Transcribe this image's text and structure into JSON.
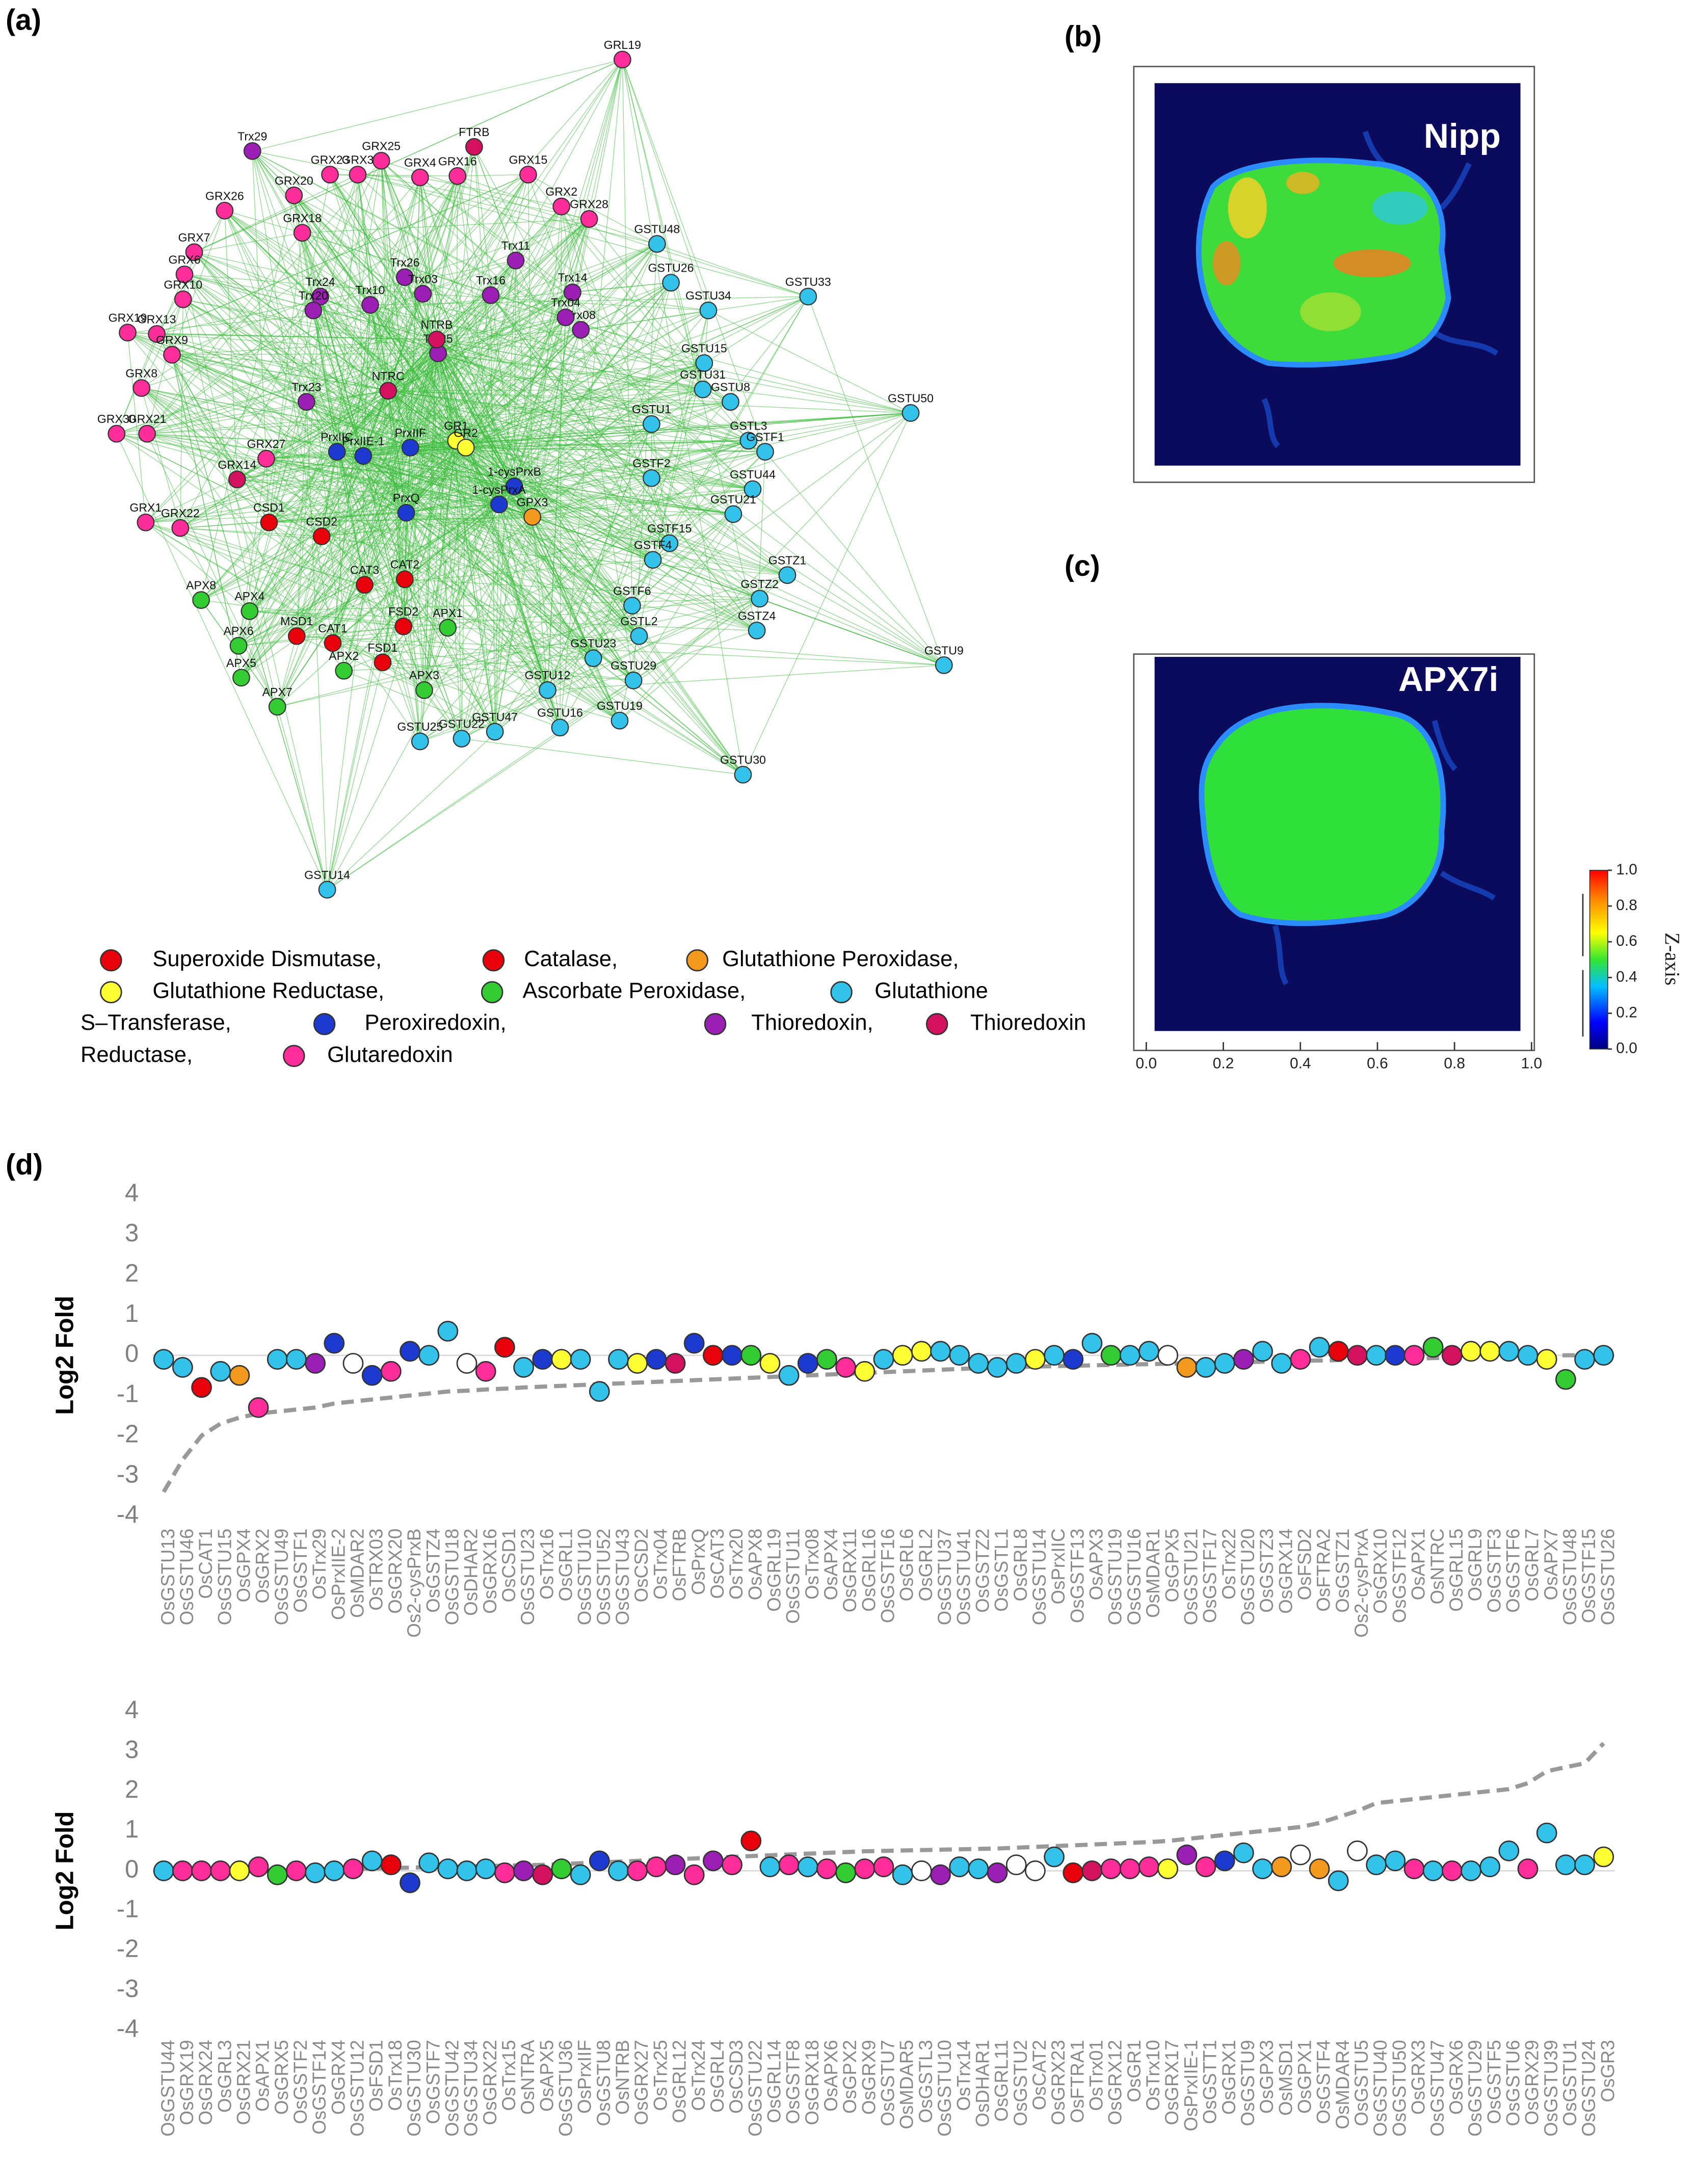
{
  "network": {
    "panel_label": "(a)",
    "nodes": [
      {
        "label": "GRL19",
        "color": "#ff2d9a"
      },
      {
        "label": "FTRB",
        "color": "#d3115e"
      },
      {
        "label": "GRX15",
        "color": "#ff2d9a"
      },
      {
        "label": "GRX25",
        "color": "#ff2d9a"
      },
      {
        "label": "GRX4",
        "color": "#ff2d9a"
      },
      {
        "label": "GRX16",
        "color": "#ff2d9a"
      },
      {
        "label": "Trx29",
        "color": "#9b1fb5"
      },
      {
        "label": "GRX23",
        "color": "#ff2d9a"
      },
      {
        "label": "GRX3",
        "color": "#ff2d9a"
      },
      {
        "label": "GRX20",
        "color": "#ff2d9a"
      },
      {
        "label": "GRX2",
        "color": "#ff2d9a"
      },
      {
        "label": "GRX28",
        "color": "#ff2d9a"
      },
      {
        "label": "GRX26",
        "color": "#ff2d9a"
      },
      {
        "label": "GRX18",
        "color": "#ff2d9a"
      },
      {
        "label": "GRX7",
        "color": "#ff2d9a"
      },
      {
        "label": "GRX6",
        "color": "#ff2d9a"
      },
      {
        "label": "GRX10",
        "color": "#ff2d9a"
      },
      {
        "label": "GRX19",
        "color": "#ff2d9a"
      },
      {
        "label": "GRX13",
        "color": "#ff2d9a"
      },
      {
        "label": "GRX9",
        "color": "#ff2d9a"
      },
      {
        "label": "GRX8",
        "color": "#ff2d9a"
      },
      {
        "label": "GRX30",
        "color": "#ff2d9a"
      },
      {
        "label": "GRX21",
        "color": "#ff2d9a"
      },
      {
        "label": "GRX27",
        "color": "#ff2d9a"
      },
      {
        "label": "GRX14",
        "color": "#d3115e"
      },
      {
        "label": "GRX22",
        "color": "#ff2d9a"
      },
      {
        "label": "GRX1",
        "color": "#ff2d9a"
      },
      {
        "label": "Trx24",
        "color": "#9b1fb5"
      },
      {
        "label": "Trx26",
        "color": "#9b1fb5"
      },
      {
        "label": "Trx03",
        "color": "#9b1fb5"
      },
      {
        "label": "Trx10",
        "color": "#9b1fb5"
      },
      {
        "label": "Trx20",
        "color": "#9b1fb5"
      },
      {
        "label": "Trx11",
        "color": "#9b1fb5"
      },
      {
        "label": "Trx16",
        "color": "#9b1fb5"
      },
      {
        "label": "Trx14",
        "color": "#9b1fb5"
      },
      {
        "label": "Trx08",
        "color": "#9b1fb5"
      },
      {
        "label": "Trx04",
        "color": "#9b1fb5"
      },
      {
        "label": "Trx25",
        "color": "#9b1fb5"
      },
      {
        "label": "NTRB",
        "color": "#d3115e"
      },
      {
        "label": "NTRC",
        "color": "#d3115e"
      },
      {
        "label": "Trx23",
        "color": "#9b1fb5"
      },
      {
        "label": "GSTU48",
        "color": "#33c3ea"
      },
      {
        "label": "GSTU26",
        "color": "#33c3ea"
      },
      {
        "label": "GSTU34",
        "color": "#33c3ea"
      },
      {
        "label": "GSTU33",
        "color": "#33c3ea"
      },
      {
        "label": "GSTU15",
        "color": "#33c3ea"
      },
      {
        "label": "GSTU31",
        "color": "#33c3ea"
      },
      {
        "label": "GSTU8",
        "color": "#33c3ea"
      },
      {
        "label": "GSTU50",
        "color": "#33c3ea"
      },
      {
        "label": "GSTU1",
        "color": "#33c3ea"
      },
      {
        "label": "GSTL3",
        "color": "#33c3ea"
      },
      {
        "label": "GSTF1",
        "color": "#33c3ea"
      },
      {
        "label": "GSTF2",
        "color": "#33c3ea"
      },
      {
        "label": "GSTU44",
        "color": "#33c3ea"
      },
      {
        "label": "GSTU21",
        "color": "#33c3ea"
      },
      {
        "label": "GSTF15",
        "color": "#33c3ea"
      },
      {
        "label": "GSTF4",
        "color": "#33c3ea"
      },
      {
        "label": "GSTZ1",
        "color": "#33c3ea"
      },
      {
        "label": "GSTZ2",
        "color": "#33c3ea"
      },
      {
        "label": "GSTF6",
        "color": "#33c3ea"
      },
      {
        "label": "GSTL2",
        "color": "#33c3ea"
      },
      {
        "label": "GSTZ4",
        "color": "#33c3ea"
      },
      {
        "label": "GSTU23",
        "color": "#33c3ea"
      },
      {
        "label": "GSTU9",
        "color": "#33c3ea"
      },
      {
        "label": "GSTU29",
        "color": "#33c3ea"
      },
      {
        "label": "GSTU12",
        "color": "#33c3ea"
      },
      {
        "label": "GSTU47",
        "color": "#33c3ea"
      },
      {
        "label": "GSTU19",
        "color": "#33c3ea"
      },
      {
        "label": "GSTU16",
        "color": "#33c3ea"
      },
      {
        "label": "GSTU30",
        "color": "#33c3ea"
      },
      {
        "label": "GSTU14",
        "color": "#33c3ea"
      },
      {
        "label": "GSTU25",
        "color": "#33c3ea"
      },
      {
        "label": "GSTU22",
        "color": "#33c3ea"
      },
      {
        "label": "APX8",
        "color": "#33cc33"
      },
      {
        "label": "APX4",
        "color": "#33cc33"
      },
      {
        "label": "APX6",
        "color": "#33cc33"
      },
      {
        "label": "APX5",
        "color": "#33cc33"
      },
      {
        "label": "APX7",
        "color": "#33cc33"
      },
      {
        "label": "APX2",
        "color": "#33cc33"
      },
      {
        "label": "APX3",
        "color": "#33cc33"
      },
      {
        "label": "APX1",
        "color": "#33cc33"
      },
      {
        "label": "MSD1",
        "color": "#e8000b"
      },
      {
        "label": "CAT1",
        "color": "#e8000b"
      },
      {
        "label": "FSD1",
        "color": "#e8000b"
      },
      {
        "label": "FSD2",
        "color": "#e8000b"
      },
      {
        "label": "CAT3",
        "color": "#e8000b"
      },
      {
        "label": "CAT2",
        "color": "#e8000b"
      },
      {
        "label": "CSD1",
        "color": "#e8000b"
      },
      {
        "label": "CSD2",
        "color": "#e8000b"
      },
      {
        "label": "PrxIIC",
        "color": "#1c3ad0"
      },
      {
        "label": "PrxIIE-1",
        "color": "#1c3ad0"
      },
      {
        "label": "PrxIIF",
        "color": "#1c3ad0"
      },
      {
        "label": "PrxQ",
        "color": "#1c3ad0"
      },
      {
        "label": "1-cysPrxB",
        "color": "#1c3ad0"
      },
      {
        "label": "1-cysPrxA",
        "color": "#1c3ad0"
      },
      {
        "label": "GR1",
        "color": "#ffff33"
      },
      {
        "label": "GR2",
        "color": "#ffff33"
      },
      {
        "label": "GPX3",
        "color": "#f39a1e"
      }
    ],
    "legend": [
      {
        "lines": [
          "Superoxide Dismutase,"
        ],
        "color": "#e8000b"
      },
      {
        "lines": [
          "Catalase,"
        ],
        "color": "#e8000b"
      },
      {
        "lines": [
          "Glutathione Peroxidase,"
        ],
        "color": "#f39a1e"
      },
      {
        "lines": [
          "Glutathione Reductase,"
        ],
        "color": "#ffff33"
      },
      {
        "lines": [
          "Ascorbate Peroxidase,"
        ],
        "color": "#33cc33"
      },
      {
        "lines": [
          "Glutathione",
          "S–Transferase,"
        ],
        "color": "#33c3ea"
      },
      {
        "lines": [
          "Peroxiredoxin,"
        ],
        "color": "#1c3ad0"
      },
      {
        "lines": [
          "Thioredoxin,"
        ],
        "color": "#9b1fb5"
      },
      {
        "lines": [
          "Thioredoxin",
          "Reductase,"
        ],
        "color": "#d3115e"
      },
      {
        "lines": [
          "Glutaredoxin"
        ],
        "color": "#ff2d9a"
      }
    ]
  },
  "heatmaps": [
    {
      "panel_label": "(b)",
      "title": "Nipp"
    },
    {
      "panel_label": "(c)",
      "title": "APX7i"
    }
  ],
  "heatmap_xticks": [
    {
      "value": 0,
      "label": "0.0"
    },
    {
      "value": 0.2,
      "label": "0.2"
    },
    {
      "value": 0.4,
      "label": "0.4"
    },
    {
      "value": 0.6,
      "label": "0.6"
    },
    {
      "value": 0.8,
      "label": "0.8"
    },
    {
      "value": 1,
      "label": "1.0"
    }
  ],
  "heatmap_xlim": [
    0,
    1
  ],
  "colorbar": {
    "title": "Z-axis",
    "lim": [
      0,
      1
    ],
    "ticks": [
      {
        "value": 0,
        "label": "0.0"
      },
      {
        "value": 0.2,
        "label": "0.2"
      },
      {
        "value": 0.4,
        "label": "0.4"
      },
      {
        "value": 0.6,
        "label": "0.6"
      },
      {
        "value": 0.8,
        "label": "0.8"
      },
      {
        "value": 1,
        "label": "1.0"
      }
    ]
  },
  "chart_data": [
    {
      "type": "scatter",
      "panel_label": "(d)",
      "y_label": "Log2 Fold",
      "ylim": [
        -4,
        4
      ],
      "yticks": [
        -4,
        -3,
        -2,
        -1,
        0,
        1,
        2,
        3,
        4
      ],
      "categories": [
        "OsGSTU13",
        "OsGSTU46",
        "OsCAT1",
        "OsGSTU15",
        "OsGPX4",
        "OsGRX2",
        "OsGSTU49",
        "OsGSTF1",
        "OsTrx29",
        "OsPrxIIE-2",
        "OsMDAR2",
        "OsTRX03",
        "OsGRX20",
        "Os2-cysPrxB",
        "OsGSTZ4",
        "OsGSTU18",
        "OsDHAR2",
        "OsGRX16",
        "OsCSD1",
        "OsGSTU23",
        "OsTrx16",
        "OsGRL1",
        "OsGSTU10",
        "OsGSTU52",
        "OsGSTU43",
        "OsCSD2",
        "OsTrx04",
        "OsFTRB",
        "OsPrxQ",
        "OsCAT3",
        "OsTrx20",
        "OsAPX8",
        "OsGRL19",
        "OsGSTU11",
        "OsTrx08",
        "OsAPX4",
        "OsGRX11",
        "OsGRL16",
        "OsGSTF16",
        "OsGRL6",
        "OsGRL2",
        "OsGSTU37",
        "OsGSTU41",
        "OsGSTZ2",
        "OsGSTL1",
        "OsGRL8",
        "OsGSTU14",
        "OsPrxIIC",
        "OsGSTF13",
        "OsAPX3",
        "OsGSTU19",
        "OsGSTU16",
        "OsMDAR1",
        "OsGPX5",
        "OsGSTU21",
        "OsGSTF17",
        "OsTrx22",
        "OsGSTU20",
        "OsGSTZ3",
        "OsGRX14",
        "OsFSD2",
        "OsFTRA2",
        "OsGSTZ1",
        "Os2-cysPrxA",
        "OsGRX10",
        "OsGSTF12",
        "OsAPX1",
        "OsNTRC",
        "OsGRL15",
        "OsGRL9",
        "OsGSTF3",
        "OsGSTF6",
        "OsGRL7",
        "OsAPX7",
        "OsGSTU48",
        "OsGSTF15",
        "OsGSTU26"
      ],
      "values": [
        -0.1,
        -0.3,
        -0.8,
        -0.4,
        -0.5,
        -1.3,
        -0.1,
        -0.1,
        -0.2,
        0.3,
        -0.2,
        -0.5,
        -0.4,
        0.1,
        0,
        0.6,
        -0.2,
        -0.4,
        0.2,
        -0.3,
        -0.1,
        -0.1,
        -0.1,
        -0.9,
        -0.1,
        -0.2,
        -0.1,
        -0.2,
        0.3,
        0,
        0,
        0,
        -0.2,
        -0.5,
        -0.2,
        -0.1,
        -0.3,
        -0.4,
        -0.1,
        0,
        0.1,
        0.1,
        0,
        -0.2,
        -0.3,
        -0.2,
        -0.1,
        0,
        -0.1,
        0.3,
        0,
        0,
        0.1,
        0,
        -0.3,
        -0.3,
        -0.2,
        -0.1,
        0.1,
        -0.2,
        -0.1,
        0.2,
        0.1,
        0,
        0,
        0,
        0,
        0.2,
        0,
        0.1,
        0.1,
        0.1,
        0,
        -0.1,
        -0.6,
        -0.1,
        0
      ],
      "colors": [
        "#33c3ea",
        "#33c3ea",
        "#e8000b",
        "#33c3ea",
        "#f39a1e",
        "#ff2d9a",
        "#33c3ea",
        "#33c3ea",
        "#9b1fb5",
        "#1c3ad0",
        "#ffffff",
        "#1c3ad0",
        "#ff2d9a",
        "#1c3ad0",
        "#33c3ea",
        "#33c3ea",
        "#ffffff",
        "#ff2d9a",
        "#e8000b",
        "#33c3ea",
        "#1c3ad0",
        "#ffff33",
        "#33c3ea",
        "#33c3ea",
        "#33c3ea",
        "#ffff33",
        "#1c3ad0",
        "#d3115e",
        "#1c3ad0",
        "#e8000b",
        "#1c3ad0",
        "#33cc33",
        "#ffff33",
        "#33c3ea",
        "#1c3ad0",
        "#33cc33",
        "#ff2d9a",
        "#ffff33",
        "#33c3ea",
        "#ffff33",
        "#ffff33",
        "#33c3ea",
        "#33c3ea",
        "#33c3ea",
        "#33c3ea",
        "#33c3ea",
        "#ffff33",
        "#33c3ea",
        "#1c3ad0",
        "#33c3ea",
        "#33cc33",
        "#33c3ea",
        "#33c3ea",
        "#ffffff",
        "#f39a1e",
        "#33c3ea",
        "#33c3ea",
        "#9b1fb5",
        "#33c3ea",
        "#33c3ea",
        "#ff2d9a",
        "#33c3ea",
        "#e8000b",
        "#d3115e",
        "#33c3ea",
        "#1c3ad0",
        "#ff2d9a",
        "#33cc33",
        "#d3115e",
        "#ffff33",
        "#ffff33",
        "#33c3ea",
        "#33c3ea",
        "#ffff33",
        "#33cc33",
        "#33c3ea",
        "#33c3ea"
      ],
      "trend": [
        -3.4,
        -2.6,
        -2.0,
        -1.7,
        -1.55,
        -1.45,
        -1.4,
        -1.35,
        -1.3,
        -1.2,
        -1.15,
        -1.1,
        -1.05,
        -1.0,
        -0.95,
        -0.9,
        -0.88,
        -0.85,
        -0.83,
        -0.8,
        -0.78,
        -0.76,
        -0.74,
        -0.72,
        -0.7,
        -0.68,
        -0.66,
        -0.64,
        -0.62,
        -0.6,
        -0.58,
        -0.56,
        -0.54,
        -0.52,
        -0.5,
        -0.48,
        -0.46,
        -0.44,
        -0.42,
        -0.4,
        -0.38,
        -0.36,
        -0.34,
        -0.32,
        -0.3,
        -0.29,
        -0.28,
        -0.27,
        -0.26,
        -0.25,
        -0.24,
        -0.23,
        -0.22,
        -0.21,
        -0.2,
        -0.19,
        -0.18,
        -0.17,
        -0.16,
        -0.15,
        -0.14,
        -0.13,
        -0.12,
        -0.11,
        -0.1,
        -0.09,
        -0.08,
        -0.07,
        -0.06,
        -0.05,
        -0.04,
        -0.03,
        -0.02,
        -0.01,
        0,
        0,
        0
      ],
      "trend_color": "#999999"
    },
    {
      "type": "scatter",
      "y_label": "Log2 Fold",
      "ylim": [
        -4,
        4
      ],
      "yticks": [
        -4,
        -3,
        -2,
        -1,
        0,
        1,
        2,
        3,
        4
      ],
      "categories": [
        "OsGSTU44",
        "OsGRX19",
        "OsGRX24",
        "OsGRL3",
        "OsGRX21",
        "OsAPX1",
        "OsGRX5",
        "OsGSTF2",
        "OsGSTF14",
        "OsGRX4",
        "OsGSTU12",
        "OsFSD1",
        "OsTrx18",
        "OsGSTU30",
        "OsGSTF7",
        "OsGSTU42",
        "OsGSTU34",
        "OsGRX22",
        "OsTrx15",
        "OsNTRA",
        "OsAPX5",
        "OsGSTU36",
        "OsPrxIIF",
        "OsGSTU8",
        "OsNTRB",
        "OsGRX27",
        "OsTrx25",
        "OsGRL12",
        "OsTrx24",
        "OsGRL4",
        "OsCSD3",
        "OsGSTU22",
        "OsGRL14",
        "OsGSTF8",
        "OsGRX18",
        "OsAPX6",
        "OsGPX2",
        "OsGRX9",
        "OsGSTU7",
        "OsMDAR5",
        "OsGSTL3",
        "OsGSTU10",
        "OsTrx14",
        "OsDHAR1",
        "OsGRL11",
        "OsGSTU2",
        "OsCAT2",
        "OsGRX23",
        "OsFTRA1",
        "OsTrx01",
        "OsGRX12",
        "OsGR1",
        "OsTrx10",
        "OsGRX17",
        "OsPrxIIE-1",
        "OsGSTT1",
        "OsGRX1",
        "OsGSTU9",
        "OsGPX3",
        "OsMSD1",
        "OsGPX1",
        "OsGSTF4",
        "OsMDAR4",
        "OsGSTU5",
        "OsGSTU40",
        "OsGSTU50",
        "OsGRX3",
        "OsGSTU47",
        "OsGRX6",
        "OsGSTU29",
        "OsGSTF5",
        "OsGSTU6",
        "OsGRX29",
        "OsGSTU39",
        "OsGSTU1",
        "OsGSTU24",
        "OsGR3"
      ],
      "values": [
        0,
        0,
        0,
        0,
        0,
        0.1,
        -0.1,
        0,
        -0.05,
        0,
        0.05,
        0.25,
        0.15,
        -0.3,
        0.2,
        0.05,
        0,
        0.05,
        -0.05,
        0,
        -0.1,
        0.05,
        -0.1,
        0.25,
        0,
        0,
        0.1,
        0.15,
        -0.1,
        0.25,
        0.15,
        0.75,
        0.1,
        0.15,
        0.1,
        0.05,
        -0.05,
        0.05,
        0.1,
        -0.1,
        0,
        -0.1,
        0.1,
        0.05,
        -0.05,
        0.15,
        0,
        0.35,
        -0.05,
        0,
        0.05,
        0.05,
        0.1,
        0.05,
        0.4,
        0.1,
        0.25,
        0.45,
        0.05,
        0.1,
        0.4,
        0.05,
        -0.25,
        0.5,
        0.15,
        0.25,
        0.05,
        0,
        0,
        0,
        0.1,
        0.5,
        0.05,
        0.95,
        0.15,
        0.15,
        0.35
      ],
      "colors": [
        "#33c3ea",
        "#ff2d9a",
        "#ff2d9a",
        "#ff2d9a",
        "#ffff33",
        "#ff2d9a",
        "#33cc33",
        "#ff2d9a",
        "#33c3ea",
        "#33c3ea",
        "#ff2d9a",
        "#33c3ea",
        "#e8000b",
        "#1c3ad0",
        "#33c3ea",
        "#33c3ea",
        "#33c3ea",
        "#33c3ea",
        "#ff2d9a",
        "#9b1fb5",
        "#d3115e",
        "#33cc33",
        "#33c3ea",
        "#1c3ad0",
        "#33c3ea",
        "#ff2d9a",
        "#ff2d9a",
        "#9b1fb5",
        "#ff2d9a",
        "#9b1fb5",
        "#ff2d9a",
        "#e8000b",
        "#33c3ea",
        "#ff2d9a",
        "#33c3ea",
        "#ff2d9a",
        "#33cc33",
        "#ff2d9a",
        "#ff2d9a",
        "#33c3ea",
        "#ffffff",
        "#9b1fb5",
        "#33c3ea",
        "#33c3ea",
        "#9b1fb5",
        "#ffffff",
        "#ffffff",
        "#33c3ea",
        "#e8000b",
        "#d3115e",
        "#ff2d9a",
        "#ff2d9a",
        "#ff2d9a",
        "#ffff33",
        "#9b1fb5",
        "#ff2d9a",
        "#1c3ad0",
        "#33c3ea",
        "#33c3ea",
        "#f39a1e",
        "#ffffff",
        "#f39a1e",
        "#33c3ea",
        "#ffffff",
        "#33c3ea",
        "#33c3ea",
        "#ff2d9a",
        "#33c3ea",
        "#ff2d9a",
        "#33c3ea",
        "#33c3ea",
        "#33c3ea",
        "#ff2d9a",
        "#33c3ea",
        "#33c3ea",
        "#33c3ea",
        "#ffff33"
      ],
      "trend": [
        -0.05,
        -0.04,
        -0.03,
        -0.02,
        -0.01,
        0,
        0.01,
        0.02,
        0.03,
        0.04,
        0.05,
        0.06,
        0.07,
        0.08,
        0.09,
        0.1,
        0.11,
        0.12,
        0.13,
        0.14,
        0.15,
        0.17,
        0.19,
        0.21,
        0.23,
        0.25,
        0.27,
        0.29,
        0.31,
        0.33,
        0.35,
        0.37,
        0.39,
        0.41,
        0.43,
        0.45,
        0.47,
        0.49,
        0.5,
        0.51,
        0.52,
        0.53,
        0.54,
        0.55,
        0.56,
        0.58,
        0.6,
        0.62,
        0.64,
        0.66,
        0.68,
        0.7,
        0.72,
        0.75,
        0.8,
        0.85,
        0.9,
        0.95,
        1.0,
        1.05,
        1.1,
        1.2,
        1.35,
        1.5,
        1.7,
        1.75,
        1.8,
        1.85,
        1.9,
        1.95,
        2.0,
        2.05,
        2.2,
        2.5,
        2.6,
        2.7,
        3.2
      ],
      "trend_color": "#999999"
    }
  ]
}
